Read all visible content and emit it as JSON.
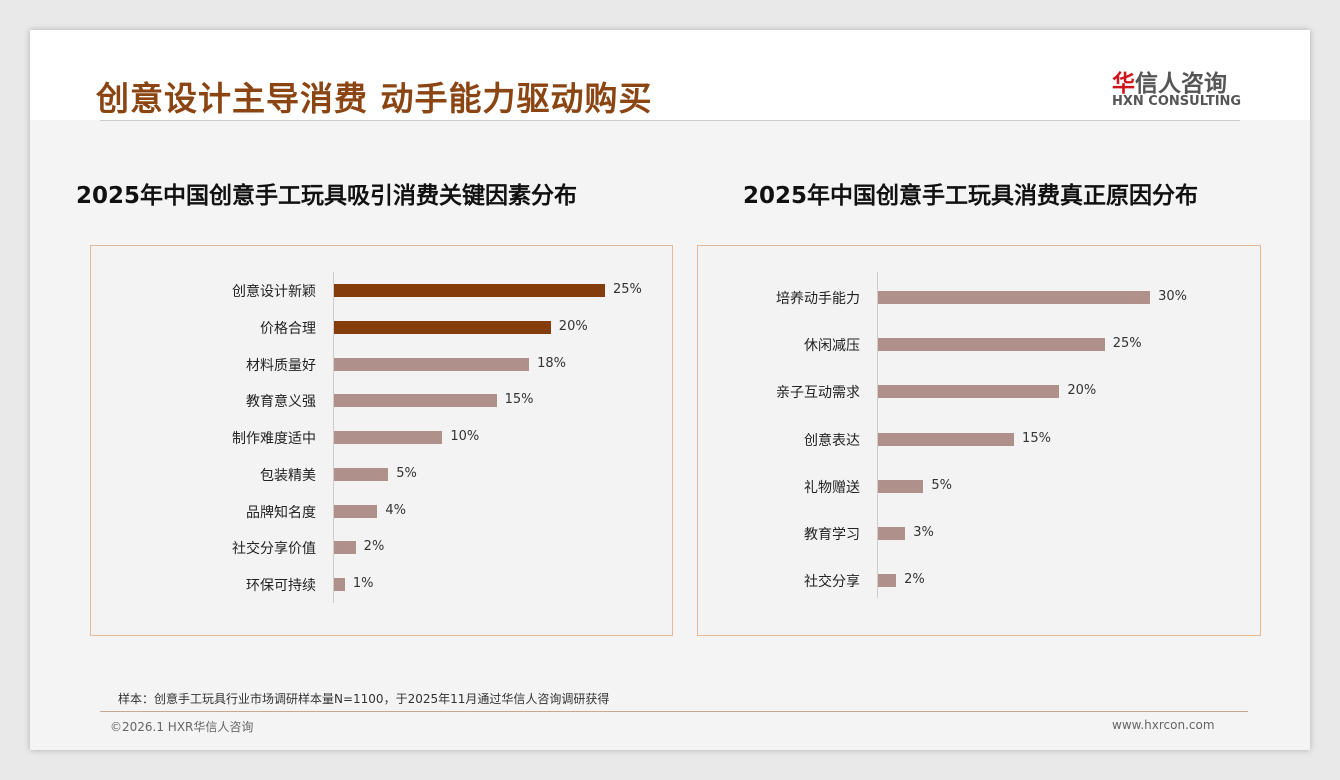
{
  "header": {
    "title": "创意设计主导消费 动手能力驱动购买",
    "logo_cn_red": "华",
    "logo_cn": "信人咨询",
    "logo_en": "HXN CONSULTING"
  },
  "colors": {
    "highlight": "#843c0c",
    "normal": "#b0908a",
    "title": "#8b4513"
  },
  "chart_data": [
    {
      "type": "bar",
      "orientation": "horizontal",
      "title": "2025年中国创意手工玩具吸引消费关键因素分布",
      "categories": [
        "创意设计新颖",
        "价格合理",
        "材料质量好",
        "教育意义强",
        "制作难度适中",
        "包装精美",
        "品牌知名度",
        "社交分享价值",
        "环保可持续"
      ],
      "values": [
        25,
        20,
        18,
        15,
        10,
        5,
        4,
        2,
        1
      ],
      "labels": [
        "25%",
        "20%",
        "18%",
        "15%",
        "10%",
        "5%",
        "4%",
        "2%",
        "1%"
      ],
      "highlight_count": 2,
      "unit": "%"
    },
    {
      "type": "bar",
      "orientation": "horizontal",
      "title": "2025年中国创意手工玩具消费真正原因分布",
      "categories": [
        "培养动手能力",
        "休闲减压",
        "亲子互动需求",
        "创意表达",
        "礼物赠送",
        "教育学习",
        "社交分享"
      ],
      "values": [
        30,
        25,
        20,
        15,
        5,
        3,
        2
      ],
      "labels": [
        "30%",
        "25%",
        "20%",
        "15%",
        "5%",
        "3%",
        "2%"
      ],
      "highlight_count": 0,
      "unit": "%"
    }
  ],
  "footer": {
    "note": "样本：创意手工玩具行业市场调研样本量N=1100，于2025年11月通过华信人咨询调研获得",
    "copyright": "©2026.1 HXR华信人咨询",
    "website": "www.hxrcon.com"
  }
}
